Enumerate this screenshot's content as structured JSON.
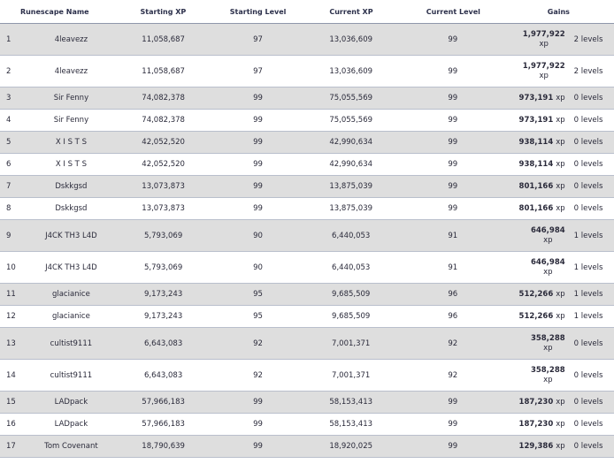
{
  "headers": {
    "name": "Runescape Name",
    "starting_xp": "Starting XP",
    "starting_level": "Starting Level",
    "current_xp": "Current XP",
    "current_level": "Current Level",
    "gains": "Gains"
  },
  "rows": [
    {
      "num": "1",
      "name": "4leavezz",
      "sxp": "11,058,687",
      "slvl": "97",
      "cxp": "13,036,609",
      "clvl": "99",
      "gxp": "1,977,922",
      "unit": "xp",
      "glvl": "2 levels"
    },
    {
      "num": "2",
      "name": "4leavezz",
      "sxp": "11,058,687",
      "slvl": "97",
      "cxp": "13,036,609",
      "clvl": "99",
      "gxp": "1,977,922",
      "unit": "xp",
      "glvl": "2 levels"
    },
    {
      "num": "3",
      "name": "Sir Fenny",
      "sxp": "74,082,378",
      "slvl": "99",
      "cxp": "75,055,569",
      "clvl": "99",
      "gxp": "973,191",
      "unit": "xp",
      "glvl": "0 levels"
    },
    {
      "num": "4",
      "name": "Sir Fenny",
      "sxp": "74,082,378",
      "slvl": "99",
      "cxp": "75,055,569",
      "clvl": "99",
      "gxp": "973,191",
      "unit": "xp",
      "glvl": "0 levels"
    },
    {
      "num": "5",
      "name": "X I S T S",
      "sxp": "42,052,520",
      "slvl": "99",
      "cxp": "42,990,634",
      "clvl": "99",
      "gxp": "938,114",
      "unit": "xp",
      "glvl": "0 levels"
    },
    {
      "num": "6",
      "name": "X I S T S",
      "sxp": "42,052,520",
      "slvl": "99",
      "cxp": "42,990,634",
      "clvl": "99",
      "gxp": "938,114",
      "unit": "xp",
      "glvl": "0 levels"
    },
    {
      "num": "7",
      "name": "Dskkgsd",
      "sxp": "13,073,873",
      "slvl": "99",
      "cxp": "13,875,039",
      "clvl": "99",
      "gxp": "801,166",
      "unit": "xp",
      "glvl": "0 levels"
    },
    {
      "num": "8",
      "name": "Dskkgsd",
      "sxp": "13,073,873",
      "slvl": "99",
      "cxp": "13,875,039",
      "clvl": "99",
      "gxp": "801,166",
      "unit": "xp",
      "glvl": "0 levels"
    },
    {
      "num": "9",
      "name": "J4CK TH3 L4D",
      "sxp": "5,793,069",
      "slvl": "90",
      "cxp": "6,440,053",
      "clvl": "91",
      "gxp": "646,984",
      "unit": "xp",
      "glvl": "1 levels"
    },
    {
      "num": "10",
      "name": "J4CK TH3 L4D",
      "sxp": "5,793,069",
      "slvl": "90",
      "cxp": "6,440,053",
      "clvl": "91",
      "gxp": "646,984",
      "unit": "xp",
      "glvl": "1 levels"
    },
    {
      "num": "11",
      "name": "glacianice",
      "sxp": "9,173,243",
      "slvl": "95",
      "cxp": "9,685,509",
      "clvl": "96",
      "gxp": "512,266",
      "unit": "xp",
      "glvl": "1 levels"
    },
    {
      "num": "12",
      "name": "glacianice",
      "sxp": "9,173,243",
      "slvl": "95",
      "cxp": "9,685,509",
      "clvl": "96",
      "gxp": "512,266",
      "unit": "xp",
      "glvl": "1 levels"
    },
    {
      "num": "13",
      "name": "cultist9111",
      "sxp": "6,643,083",
      "slvl": "92",
      "cxp": "7,001,371",
      "clvl": "92",
      "gxp": "358,288",
      "unit": "xp",
      "glvl": "0 levels"
    },
    {
      "num": "14",
      "name": "cultist9111",
      "sxp": "6,643,083",
      "slvl": "92",
      "cxp": "7,001,371",
      "clvl": "92",
      "gxp": "358,288",
      "unit": "xp",
      "glvl": "0 levels"
    },
    {
      "num": "15",
      "name": "LADpack",
      "sxp": "57,966,183",
      "slvl": "99",
      "cxp": "58,153,413",
      "clvl": "99",
      "gxp": "187,230",
      "unit": "xp",
      "glvl": "0 levels"
    },
    {
      "num": "16",
      "name": "LADpack",
      "sxp": "57,966,183",
      "slvl": "99",
      "cxp": "58,153,413",
      "clvl": "99",
      "gxp": "187,230",
      "unit": "xp",
      "glvl": "0 levels"
    },
    {
      "num": "17",
      "name": "Tom Covenant",
      "sxp": "18,790,639",
      "slvl": "99",
      "cxp": "18,920,025",
      "clvl": "99",
      "gxp": "129,386",
      "unit": "xp",
      "glvl": "0 levels"
    }
  ]
}
